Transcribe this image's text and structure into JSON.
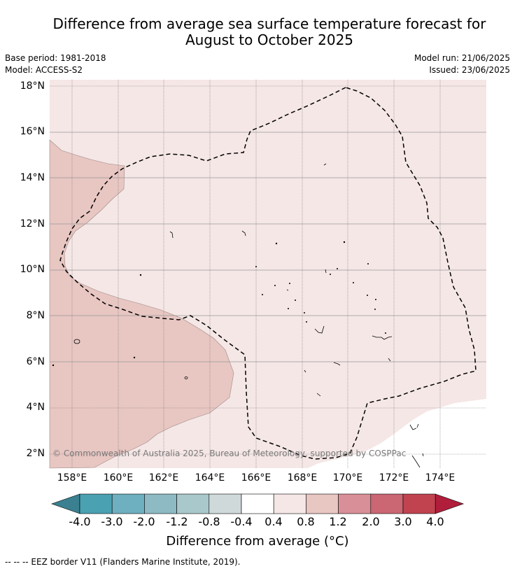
{
  "title_line1": "Difference from average sea surface temperature forecast for",
  "title_line2": "August to October 2025",
  "base_period": "Base period: 1981-2018",
  "model": "Model: ACCESS-S2",
  "model_run": "Model run: 21/06/2025",
  "issued": "Issued: 23/06/2025",
  "latitude_labels": [
    "18°N",
    "16°N",
    "14°N",
    "12°N",
    "10°N",
    "8°N",
    "6°N",
    "4°N",
    "2°N"
  ],
  "longitude_labels": [
    "158°E",
    "160°E",
    "162°E",
    "164°E",
    "166°E",
    "168°E",
    "170°E",
    "172°E",
    "174°E"
  ],
  "colorbar": {
    "labels": [
      "-4.0",
      "-3.0",
      "-2.0",
      "-1.2",
      "-0.8",
      "-0.4",
      "0.4",
      "0.8",
      "1.2",
      "2.0",
      "3.0",
      "4.0"
    ],
    "colors": [
      "#3b8090",
      "#4aa1b1",
      "#6eb0bf",
      "#8ebac4",
      "#a9c8cc",
      "#d0d9da",
      "#ffffff",
      "#f5e7e6",
      "#e8c6c2",
      "#d98f97",
      "#cb6673",
      "#c0434f",
      "#b01e3b"
    ],
    "title": "Difference from average (°C)"
  },
  "map_layers": {
    "background_class_color": "#f5e7e6",
    "warm_region_color": "#e8c6c2",
    "no_data_color": "#ffffff"
  },
  "copyright": "© Commonwealth of Australia 2025, Bureau of Meteorology, supported by COSPPac",
  "footer_legend": "--  --  -- EEZ border V11 (Flanders Marine Institute, 2019)."
}
